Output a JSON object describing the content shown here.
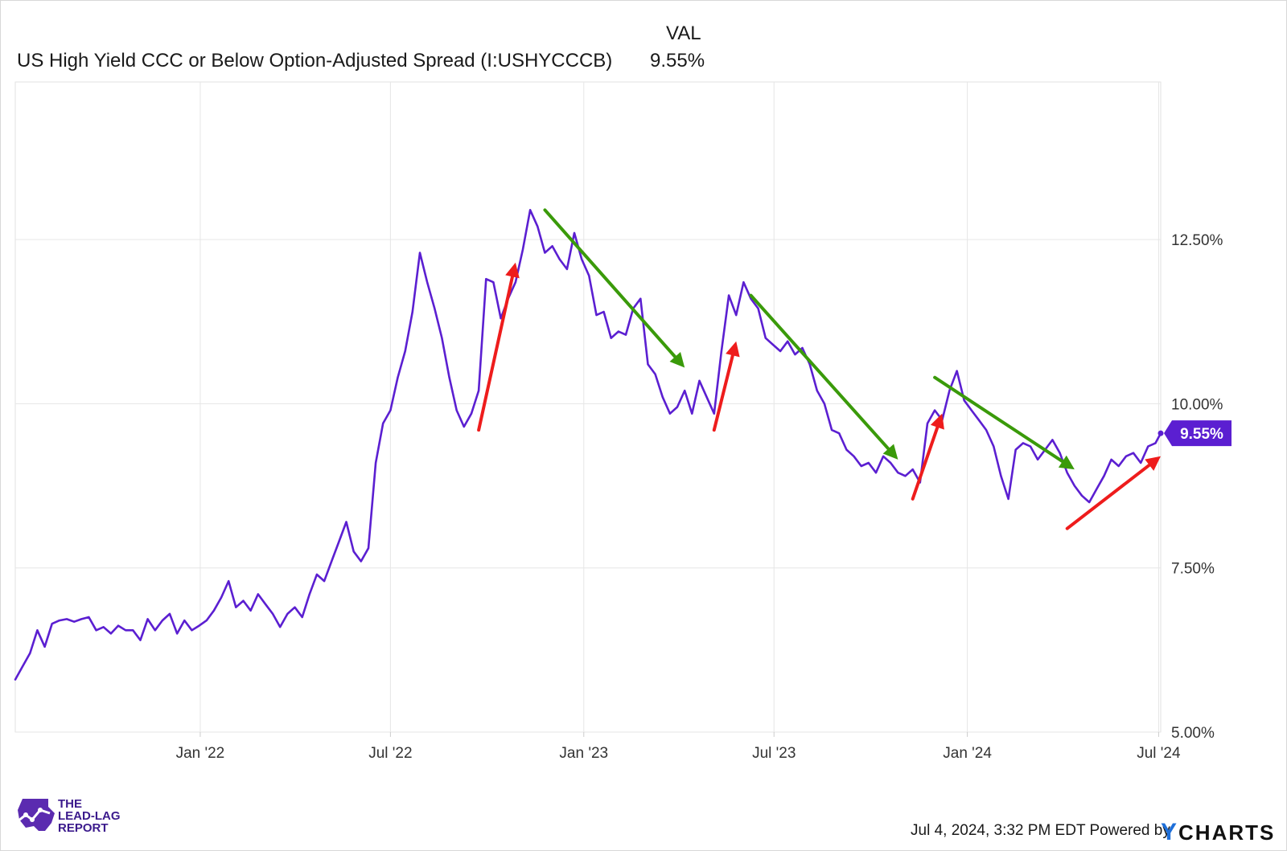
{
  "header": {
    "column_label": "VAL",
    "series_name": "US High Yield CCC or Below Option-Adjusted Spread (I:USHYCCCB)",
    "series_value": "9.55%"
  },
  "chart_data": {
    "type": "line",
    "title": "",
    "xlabel": "",
    "ylabel": "",
    "x_range": [
      "2021-07-09",
      "2024-07-03"
    ],
    "ylim": [
      5.0,
      14.9
    ],
    "y_ticks": [
      5.0,
      7.5,
      10.0,
      12.5
    ],
    "y_tick_labels": [
      "5.00%",
      "7.50%",
      "10.00%",
      "12.50%"
    ],
    "x_ticks": [
      "2022-01-01",
      "2022-07-01",
      "2023-01-01",
      "2023-07-01",
      "2024-01-01",
      "2024-07-01"
    ],
    "x_tick_labels": [
      "Jan '22",
      "Jul '22",
      "Jan '23",
      "Jul '23",
      "Jan '24",
      "Jul '24"
    ],
    "grid": true,
    "line_color": "#5b1fd1",
    "last_value_label": "9.55%",
    "series": [
      {
        "points": [
          [
            "2021-07-09",
            5.8
          ],
          [
            "2021-07-16",
            6.0
          ],
          [
            "2021-07-23",
            6.2
          ],
          [
            "2021-07-30",
            6.55
          ],
          [
            "2021-08-06",
            6.3
          ],
          [
            "2021-08-13",
            6.65
          ],
          [
            "2021-08-20",
            6.7
          ],
          [
            "2021-08-27",
            6.72
          ],
          [
            "2021-09-03",
            6.68
          ],
          [
            "2021-09-10",
            6.72
          ],
          [
            "2021-09-17",
            6.75
          ],
          [
            "2021-09-24",
            6.55
          ],
          [
            "2021-10-01",
            6.6
          ],
          [
            "2021-10-08",
            6.5
          ],
          [
            "2021-10-15",
            6.62
          ],
          [
            "2021-10-22",
            6.55
          ],
          [
            "2021-10-29",
            6.55
          ],
          [
            "2021-11-05",
            6.4
          ],
          [
            "2021-11-12",
            6.72
          ],
          [
            "2021-11-19",
            6.55
          ],
          [
            "2021-11-26",
            6.7
          ],
          [
            "2021-12-03",
            6.8
          ],
          [
            "2021-12-10",
            6.5
          ],
          [
            "2021-12-17",
            6.7
          ],
          [
            "2021-12-24",
            6.55
          ],
          [
            "2021-12-31",
            6.62
          ],
          [
            "2022-01-07",
            6.7
          ],
          [
            "2022-01-14",
            6.85
          ],
          [
            "2022-01-21",
            7.05
          ],
          [
            "2022-01-28",
            7.3
          ],
          [
            "2022-02-04",
            6.9
          ],
          [
            "2022-02-11",
            7.0
          ],
          [
            "2022-02-18",
            6.85
          ],
          [
            "2022-02-25",
            7.1
          ],
          [
            "2022-03-04",
            6.95
          ],
          [
            "2022-03-11",
            6.8
          ],
          [
            "2022-03-18",
            6.6
          ],
          [
            "2022-03-25",
            6.8
          ],
          [
            "2022-04-01",
            6.9
          ],
          [
            "2022-04-08",
            6.75
          ],
          [
            "2022-04-15",
            7.1
          ],
          [
            "2022-04-22",
            7.4
          ],
          [
            "2022-04-29",
            7.3
          ],
          [
            "2022-05-06",
            7.6
          ],
          [
            "2022-05-13",
            7.9
          ],
          [
            "2022-05-20",
            8.2
          ],
          [
            "2022-05-27",
            7.75
          ],
          [
            "2022-06-03",
            7.6
          ],
          [
            "2022-06-10",
            7.8
          ],
          [
            "2022-06-17",
            9.1
          ],
          [
            "2022-06-24",
            9.7
          ],
          [
            "2022-07-01",
            9.9
          ],
          [
            "2022-07-08",
            10.4
          ],
          [
            "2022-07-15",
            10.8
          ],
          [
            "2022-07-22",
            11.4
          ],
          [
            "2022-07-29",
            12.3
          ],
          [
            "2022-08-05",
            11.85
          ],
          [
            "2022-08-12",
            11.45
          ],
          [
            "2022-08-19",
            11.0
          ],
          [
            "2022-08-26",
            10.4
          ],
          [
            "2022-09-02",
            9.9
          ],
          [
            "2022-09-09",
            9.65
          ],
          [
            "2022-09-16",
            9.85
          ],
          [
            "2022-09-23",
            10.2
          ],
          [
            "2022-09-30",
            11.9
          ],
          [
            "2022-10-07",
            11.85
          ],
          [
            "2022-10-14",
            11.3
          ],
          [
            "2022-10-21",
            11.6
          ],
          [
            "2022-10-28",
            11.85
          ],
          [
            "2022-11-04",
            12.35
          ],
          [
            "2022-11-11",
            12.95
          ],
          [
            "2022-11-18",
            12.7
          ],
          [
            "2022-11-25",
            12.3
          ],
          [
            "2022-12-02",
            12.4
          ],
          [
            "2022-12-09",
            12.2
          ],
          [
            "2022-12-16",
            12.05
          ],
          [
            "2022-12-23",
            12.6
          ],
          [
            "2022-12-30",
            12.2
          ],
          [
            "2023-01-06",
            11.95
          ],
          [
            "2023-01-13",
            11.35
          ],
          [
            "2023-01-20",
            11.4
          ],
          [
            "2023-01-27",
            11.0
          ],
          [
            "2023-02-03",
            11.1
          ],
          [
            "2023-02-10",
            11.05
          ],
          [
            "2023-02-17",
            11.45
          ],
          [
            "2023-02-24",
            11.6
          ],
          [
            "2023-03-03",
            10.6
          ],
          [
            "2023-03-10",
            10.45
          ],
          [
            "2023-03-17",
            10.1
          ],
          [
            "2023-03-24",
            9.85
          ],
          [
            "2023-03-31",
            9.95
          ],
          [
            "2023-04-07",
            10.2
          ],
          [
            "2023-04-14",
            9.85
          ],
          [
            "2023-04-21",
            10.35
          ],
          [
            "2023-04-28",
            10.1
          ],
          [
            "2023-05-05",
            9.85
          ],
          [
            "2023-05-12",
            10.8
          ],
          [
            "2023-05-19",
            11.65
          ],
          [
            "2023-05-26",
            11.35
          ],
          [
            "2023-06-02",
            11.85
          ],
          [
            "2023-06-09",
            11.6
          ],
          [
            "2023-06-16",
            11.45
          ],
          [
            "2023-06-23",
            11.0
          ],
          [
            "2023-06-30",
            10.9
          ],
          [
            "2023-07-07",
            10.8
          ],
          [
            "2023-07-14",
            10.95
          ],
          [
            "2023-07-21",
            10.75
          ],
          [
            "2023-07-28",
            10.85
          ],
          [
            "2023-08-04",
            10.6
          ],
          [
            "2023-08-11",
            10.2
          ],
          [
            "2023-08-18",
            10.0
          ],
          [
            "2023-08-25",
            9.6
          ],
          [
            "2023-09-01",
            9.55
          ],
          [
            "2023-09-08",
            9.3
          ],
          [
            "2023-09-15",
            9.2
          ],
          [
            "2023-09-22",
            9.05
          ],
          [
            "2023-09-29",
            9.1
          ],
          [
            "2023-10-06",
            8.95
          ],
          [
            "2023-10-13",
            9.2
          ],
          [
            "2023-10-20",
            9.1
          ],
          [
            "2023-10-27",
            8.95
          ],
          [
            "2023-11-03",
            8.9
          ],
          [
            "2023-11-10",
            9.0
          ],
          [
            "2023-11-17",
            8.8
          ],
          [
            "2023-11-24",
            9.7
          ],
          [
            "2023-12-01",
            9.9
          ],
          [
            "2023-12-08",
            9.75
          ],
          [
            "2023-12-15",
            10.2
          ],
          [
            "2023-12-22",
            10.5
          ],
          [
            "2023-12-29",
            10.05
          ],
          [
            "2024-01-05",
            9.9
          ],
          [
            "2024-01-12",
            9.75
          ],
          [
            "2024-01-19",
            9.6
          ],
          [
            "2024-01-26",
            9.35
          ],
          [
            "2024-02-02",
            8.9
          ],
          [
            "2024-02-09",
            8.55
          ],
          [
            "2024-02-16",
            9.3
          ],
          [
            "2024-02-23",
            9.4
          ],
          [
            "2024-03-01",
            9.35
          ],
          [
            "2024-03-08",
            9.15
          ],
          [
            "2024-03-15",
            9.3
          ],
          [
            "2024-03-22",
            9.45
          ],
          [
            "2024-03-29",
            9.25
          ],
          [
            "2024-04-05",
            8.95
          ],
          [
            "2024-04-12",
            8.75
          ],
          [
            "2024-04-19",
            8.6
          ],
          [
            "2024-04-26",
            8.5
          ],
          [
            "2024-05-03",
            8.7
          ],
          [
            "2024-05-10",
            8.9
          ],
          [
            "2024-05-17",
            9.15
          ],
          [
            "2024-05-24",
            9.05
          ],
          [
            "2024-05-31",
            9.2
          ],
          [
            "2024-06-07",
            9.25
          ],
          [
            "2024-06-14",
            9.1
          ],
          [
            "2024-06-21",
            9.35
          ],
          [
            "2024-06-28",
            9.4
          ],
          [
            "2024-07-03",
            9.55
          ]
        ]
      }
    ],
    "annotations": {
      "up_arrows_color": "#ee1c1c",
      "down_arrows_color": "#3a9a0a",
      "up_arrows": [
        {
          "from": [
            "2022-09-23",
            9.6
          ],
          "to": [
            "2022-10-28",
            12.15
          ]
        },
        {
          "from": [
            "2023-05-05",
            9.6
          ],
          "to": [
            "2023-05-26",
            10.95
          ]
        },
        {
          "from": [
            "2023-11-10",
            8.55
          ],
          "to": [
            "2023-12-08",
            9.85
          ]
        },
        {
          "from": [
            "2024-04-05",
            8.1
          ],
          "to": [
            "2024-07-03",
            9.2
          ]
        }
      ],
      "down_arrows": [
        {
          "from": [
            "2022-11-25",
            12.95
          ],
          "to": [
            "2023-04-07",
            10.55
          ]
        },
        {
          "from": [
            "2023-06-09",
            11.65
          ],
          "to": [
            "2023-10-27",
            9.15
          ]
        },
        {
          "from": [
            "2023-12-01",
            10.4
          ],
          "to": [
            "2024-04-12",
            9.0
          ]
        }
      ]
    }
  },
  "footer": {
    "timestamp": "Jul 4, 2024, 3:32 PM EDT",
    "powered_by": "Powered by",
    "brand_y": "Y",
    "brand_rest": "CHARTS",
    "logo_line1": "THE",
    "logo_line2": "LEAD-LAG",
    "logo_line3": "REPORT"
  }
}
